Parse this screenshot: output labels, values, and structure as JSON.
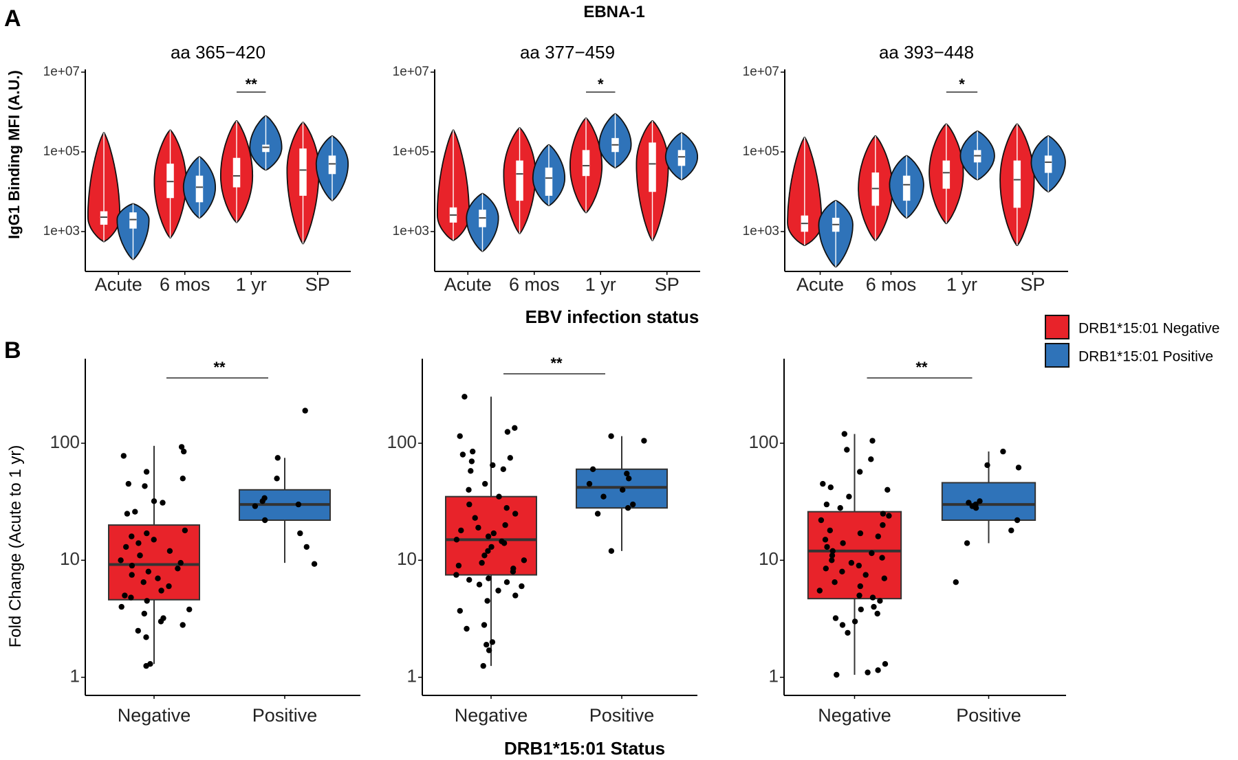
{
  "figure": {
    "panel_a_letter": "A",
    "panel_b_letter": "B",
    "panel_a_title": "EBNA-1",
    "panel_a_xlabel": "EBV infection status",
    "panel_a_ylabel": "IgG1 Binding MFI (A.U.)",
    "panel_b_xlabel": "DRB1*15:01 Status",
    "panel_b_ylabel": "Fold Change (Acute to 1 yr)"
  },
  "legend": {
    "items": [
      {
        "label": "DRB1*15:01 Negative",
        "color": "#e8232a"
      },
      {
        "label": "DRB1*15:01 Positive",
        "color": "#2f73b9"
      }
    ]
  },
  "colors": {
    "negative": "#e8232a",
    "positive": "#2f73b9",
    "median_line": "#333333",
    "axis": "#000000"
  },
  "chart_data": [
    {
      "type": "violin",
      "panel": "A",
      "title": "aa 365−420",
      "y_scale": "log10",
      "ylim": [
        100,
        10000000
      ],
      "y_ticks": [
        "1e+03",
        "1e+05",
        "1e+07"
      ],
      "categories": [
        "Acute",
        "6 mos",
        "1 yr",
        "SP"
      ],
      "series": [
        {
          "name": "DRB1*15:01 Negative",
          "groups": [
            {
              "category": "Acute",
              "min": 560,
              "q1": 1500,
              "median": 2300,
              "q3": 3200,
              "max": 300000
            },
            {
              "category": "6 mos",
              "min": 700,
              "q1": 7000,
              "median": 18000,
              "q3": 50000,
              "max": 350000
            },
            {
              "category": "1 yr",
              "min": 1700,
              "q1": 13000,
              "median": 25000,
              "q3": 70000,
              "max": 600000
            },
            {
              "category": "SP",
              "min": 500,
              "q1": 8000,
              "median": 35000,
              "q3": 120000,
              "max": 550000
            }
          ]
        },
        {
          "name": "DRB1*15:01 Positive",
          "groups": [
            {
              "category": "Acute",
              "min": 200,
              "q1": 1200,
              "median": 2000,
              "q3": 3000,
              "max": 5000
            },
            {
              "category": "6 mos",
              "min": 2200,
              "q1": 5500,
              "median": 13000,
              "q3": 25000,
              "max": 75000
            },
            {
              "category": "1 yr",
              "min": 35000,
              "q1": 100000,
              "median": 130000,
              "q3": 150000,
              "max": 800000
            },
            {
              "category": "SP",
              "min": 6000,
              "q1": 28000,
              "median": 50000,
              "q3": 80000,
              "max": 250000
            }
          ]
        }
      ],
      "annotations": [
        {
          "text": "**",
          "category": "1 yr"
        }
      ]
    },
    {
      "type": "violin",
      "panel": "A",
      "title": "aa 377−459",
      "y_scale": "log10",
      "ylim": [
        100,
        10000000
      ],
      "y_ticks": [
        "1e+03",
        "1e+05",
        "1e+07"
      ],
      "categories": [
        "Acute",
        "6 mos",
        "1 yr",
        "SP"
      ],
      "series": [
        {
          "name": "DRB1*15:01 Negative",
          "groups": [
            {
              "category": "Acute",
              "min": 600,
              "q1": 1700,
              "median": 2600,
              "q3": 4000,
              "max": 350000
            },
            {
              "category": "6 mos",
              "min": 900,
              "q1": 6000,
              "median": 28000,
              "q3": 60000,
              "max": 400000
            },
            {
              "category": "1 yr",
              "min": 3000,
              "q1": 25000,
              "median": 45000,
              "q3": 110000,
              "max": 700000
            },
            {
              "category": "SP",
              "min": 600,
              "q1": 10000,
              "median": 50000,
              "q3": 170000,
              "max": 600000
            }
          ]
        },
        {
          "name": "DRB1*15:01 Positive",
          "groups": [
            {
              "category": "Acute",
              "min": 320,
              "q1": 1300,
              "median": 2200,
              "q3": 3500,
              "max": 9000
            },
            {
              "category": "6 mos",
              "min": 4500,
              "q1": 8000,
              "median": 22000,
              "q3": 40000,
              "max": 150000
            },
            {
              "category": "1 yr",
              "min": 40000,
              "q1": 100000,
              "median": 150000,
              "q3": 220000,
              "max": 900000
            },
            {
              "category": "SP",
              "min": 20000,
              "q1": 45000,
              "median": 75000,
              "q3": 110000,
              "max": 300000
            }
          ]
        }
      ],
      "annotations": [
        {
          "text": "*",
          "category": "1 yr"
        }
      ]
    },
    {
      "type": "violin",
      "panel": "A",
      "title": "aa 393−448",
      "y_scale": "log10",
      "ylim": [
        100,
        10000000
      ],
      "y_ticks": [
        "1e+03",
        "1e+05",
        "1e+07"
      ],
      "categories": [
        "Acute",
        "6 mos",
        "1 yr",
        "SP"
      ],
      "series": [
        {
          "name": "DRB1*15:01 Negative",
          "groups": [
            {
              "category": "Acute",
              "min": 450,
              "q1": 1000,
              "median": 1600,
              "q3": 2500,
              "max": 230000
            },
            {
              "category": "6 mos",
              "min": 600,
              "q1": 4500,
              "median": 12000,
              "q3": 30000,
              "max": 250000
            },
            {
              "category": "1 yr",
              "min": 1600,
              "q1": 12000,
              "median": 30000,
              "q3": 60000,
              "max": 500000
            },
            {
              "category": "SP",
              "min": 450,
              "q1": 4000,
              "median": 20000,
              "q3": 60000,
              "max": 500000
            }
          ]
        },
        {
          "name": "DRB1*15:01 Positive",
          "groups": [
            {
              "category": "Acute",
              "min": 130,
              "q1": 1000,
              "median": 1500,
              "q3": 2200,
              "max": 6000
            },
            {
              "category": "6 mos",
              "min": 2200,
              "q1": 6000,
              "median": 15000,
              "q3": 25000,
              "max": 80000
            },
            {
              "category": "1 yr",
              "min": 20000,
              "q1": 55000,
              "median": 80000,
              "q3": 110000,
              "max": 330000
            },
            {
              "category": "SP",
              "min": 10000,
              "q1": 30000,
              "median": 55000,
              "q3": 80000,
              "max": 250000
            }
          ]
        }
      ],
      "annotations": [
        {
          "text": "*",
          "category": "1 yr"
        }
      ]
    },
    {
      "type": "box",
      "panel": "B",
      "y_scale": "log10",
      "ylim": [
        0.7,
        500
      ],
      "y_ticks": [
        "1",
        "10",
        "100"
      ],
      "categories": [
        "Negative",
        "Positive"
      ],
      "boxes": [
        {
          "category": "Negative",
          "min": 1.3,
          "q1": 4.6,
          "median": 9.2,
          "q3": 20,
          "max": 95
        },
        {
          "category": "Positive",
          "min": 9.5,
          "q1": 22,
          "median": 30,
          "q3": 40,
          "max": 75
        }
      ],
      "points": {
        "Negative": [
          93,
          85,
          78,
          57,
          50,
          45,
          43,
          32,
          31,
          26,
          25,
          18,
          17,
          16,
          15,
          14,
          13,
          12,
          11,
          11,
          10,
          9.5,
          9,
          8.5,
          8,
          7.5,
          7,
          6.5,
          6,
          5.5,
          5,
          4.8,
          4.5,
          4,
          3.8,
          3.5,
          3.2,
          3,
          2.8,
          2.5,
          2.2,
          1.3,
          1.25
        ],
        "Positive": [
          190,
          75,
          50,
          34,
          32,
          30,
          29,
          22,
          17,
          13,
          9.3
        ]
      },
      "annotations": [
        {
          "text": "**"
        }
      ]
    },
    {
      "type": "box",
      "panel": "B",
      "y_scale": "log10",
      "ylim": [
        0.7,
        500
      ],
      "y_ticks": [
        "1",
        "10",
        "100"
      ],
      "categories": [
        "Negative",
        "Positive"
      ],
      "boxes": [
        {
          "category": "Negative",
          "min": 1.25,
          "q1": 7.5,
          "median": 15,
          "q3": 35,
          "max": 250
        },
        {
          "category": "Positive",
          "min": 12,
          "q1": 28,
          "median": 42,
          "q3": 60,
          "max": 115
        }
      ],
      "points": {
        "Negative": [
          250,
          135,
          125,
          115,
          85,
          80,
          75,
          70,
          65,
          60,
          58,
          45,
          40,
          35,
          30,
          28,
          25,
          23,
          20,
          19,
          18,
          17,
          16,
          15,
          14.5,
          14,
          13,
          12,
          11,
          10,
          9.5,
          9,
          8.5,
          8,
          7.5,
          7,
          6.8,
          6.5,
          6.2,
          6,
          5.5,
          5,
          4.5,
          3.7,
          2.8,
          2.6,
          2,
          1.9,
          1.7,
          1.25
        ],
        "Positive": [
          115,
          105,
          60,
          55,
          50,
          45,
          40,
          35,
          30,
          28,
          25,
          12
        ]
      },
      "annotations": [
        {
          "text": "**"
        }
      ]
    },
    {
      "type": "box",
      "panel": "B",
      "y_scale": "log10",
      "ylim": [
        0.7,
        500
      ],
      "y_ticks": [
        "1",
        "10",
        "100"
      ],
      "categories": [
        "Negative",
        "Positive"
      ],
      "boxes": [
        {
          "category": "Negative",
          "min": 1.05,
          "q1": 4.7,
          "median": 12,
          "q3": 26,
          "max": 120
        },
        {
          "category": "Positive",
          "min": 14,
          "q1": 22,
          "median": 30,
          "q3": 46,
          "max": 85
        }
      ],
      "points": {
        "Negative": [
          120,
          105,
          88,
          73,
          57,
          45,
          42,
          40,
          35,
          30,
          28,
          25,
          24,
          22,
          20,
          18,
          17,
          16,
          15,
          14,
          13,
          12,
          11.5,
          11,
          10.5,
          10,
          9.5,
          9,
          8.5,
          8,
          7.5,
          7,
          6.5,
          6,
          5.5,
          5,
          4.8,
          4.5,
          4,
          3.8,
          3.5,
          3.2,
          3,
          2.8,
          2.4,
          1.3,
          1.15,
          1.1,
          1.05
        ],
        "Positive": [
          85,
          65,
          62,
          32,
          31,
          30,
          29,
          28,
          22,
          18,
          14,
          6.5
        ]
      },
      "annotations": [
        {
          "text": "**"
        }
      ]
    }
  ]
}
